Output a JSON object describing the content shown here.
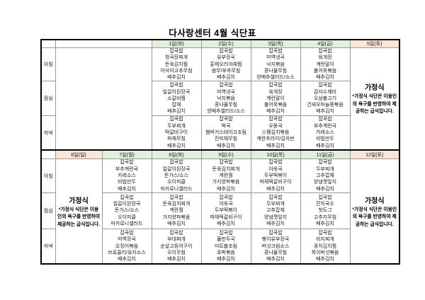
{
  "title": "다사랑센터 4월 식단표",
  "meal_labels": [
    "아침",
    "점심",
    "저녁"
  ],
  "homestyle": {
    "heading": "가정식",
    "description": "*가정식 식단은 이용인의 욕구를 반영하여 제공하는 급식입니다."
  },
  "colors": {
    "weekday_header": "#e2efda",
    "weekend_header": "#fce4d6"
  },
  "week1": {
    "headers": [
      "1일(화)",
      "2일(수)",
      "3일(목)",
      "4일(금)",
      "5일(토)"
    ],
    "days": [
      {
        "date": "1일(화)",
        "breakfast": [
          "잡곡밥",
          "청국장찌개",
          "돈육김치찜",
          "아삭이고추무침",
          "배추김치"
        ],
        "lunch": [
          "잡곡밥",
          "얼갈이된장국",
          "소갈비찜",
          "잡채",
          "배추김치"
        ],
        "dinner": [
          "잡곡밥",
          "두부찌개",
          "떡갈비구이",
          "파채무침",
          "배추김치"
        ]
      },
      {
        "date": "2일(수)",
        "breakfast": [
          "잡곡밥",
          "유부장국",
          "훈제오리야채찜",
          "쌈무/부추무침",
          "배추김치"
        ],
        "lunch": [
          "잡곡밥",
          "미역냉국",
          "낙지볶음",
          "콩나물무침",
          "양배추샐러드/소스"
        ],
        "dinner": [
          "잡곡밥",
          "떡국",
          "햄버거스테이크조림",
          "진미채무침",
          "배추김치"
        ]
      },
      {
        "date": "3일(목)",
        "breakfast": [
          "잡곡밥",
          "미역냉국",
          "낙지볶음",
          "콩나물무침",
          "양배추샐러드/소스"
        ],
        "lunch": [
          "잡곡밥",
          "육개장",
          "계란말이",
          "불어묵볶음",
          "배추김치"
        ],
        "dinner": [
          "잡곡밥",
          "우동국",
          "스팸김치볶음",
          "계란프라이/김자반",
          "배추김치"
        ]
      },
      {
        "date": "4일(금)",
        "breakfast": [
          "잡곡밥",
          "육개장",
          "계란말이",
          "불어묵볶음",
          "배추김치"
        ],
        "lunch": [
          "잡곡밥",
          "감자수제비",
          "오삼불고기",
          "건새우마늘쫑볶음",
          "배추김치"
        ],
        "dinner": [
          "잡곡밥",
          "부추계란국",
          "카레소스",
          "비빔만두",
          "배추김치"
        ]
      }
    ]
  },
  "week2": {
    "headers": [
      "6일(일)",
      "7일(월)",
      "8일(화)",
      "9일(수)",
      "10일(목)",
      "11일(금)",
      "12일(토)"
    ],
    "days": [
      {
        "date": "7일(월)",
        "breakfast": [
          "잡곡밥",
          "부추계란국",
          "카레소스",
          "비빔만두",
          "배추김치"
        ],
        "lunch": [
          "잡곡밥",
          "얼갈이된장국",
          "돈가스/소스",
          "오이피클",
          "마카로니샐러드"
        ],
        "dinner": [
          "잡곡밥",
          "미역장국",
          "오징어볶음",
          "브로콜리/유자소스",
          "배추김치"
        ]
      },
      {
        "date": "8일(화)",
        "breakfast": [
          "잡곡밥",
          "얼갈이된장국",
          "돈가스/소스",
          "오이피클",
          "마카로니샐러드"
        ],
        "lunch": [
          "잡곡밥",
          "돈육김치찌개",
          "계란찜",
          "가지양파볶음",
          "배추김치"
        ],
        "dinner": [
          "잡곡밥",
          "부대찌개",
          "순살고등어구이",
          "오이무침",
          "배추김치"
        ]
      },
      {
        "date": "9일(수)",
        "breakfast": [
          "잡곡밥",
          "돈육김치찌개",
          "계란찜",
          "가지양파볶음",
          "배추김치"
        ],
        "lunch": [
          "잡곡밥",
          "아욱국",
          "두부떡볶이",
          "파채떡갈비구이",
          "배추김치"
        ],
        "dinner": [
          "잡곡밥",
          "물만두국",
          "미트볼조림",
          "호박볶음",
          "배추김치"
        ]
      },
      {
        "date": "10일(목)",
        "breakfast": [
          "잡곡밥",
          "아욱국",
          "두부떡볶이",
          "파채떡갈비구이",
          "배추김치"
        ],
        "lunch": [
          "잡곡밥",
          "두부찌개",
          "고추잡채",
          "양념깻잎지",
          "배추김치"
        ],
        "dinner": [
          "잡곡밥",
          "팽이유부장국",
          "버섯크림소스",
          "콩나물무침",
          "배추김치"
        ]
      },
      {
        "date": "11일(금)",
        "breakfast": [
          "잡곡밥",
          "두부찌개",
          "고추잡채",
          "양념깻잎지",
          "배추김치"
        ],
        "lunch": [
          "잡곡밥",
          "잔치국수",
          "핫도그",
          "고추지무침",
          "배추김치"
        ],
        "dinner": [
          "잡곡밥",
          "비지찌개",
          "꽁치김치찜",
          "목이버섯볶음",
          "배추김치"
        ]
      }
    ]
  }
}
